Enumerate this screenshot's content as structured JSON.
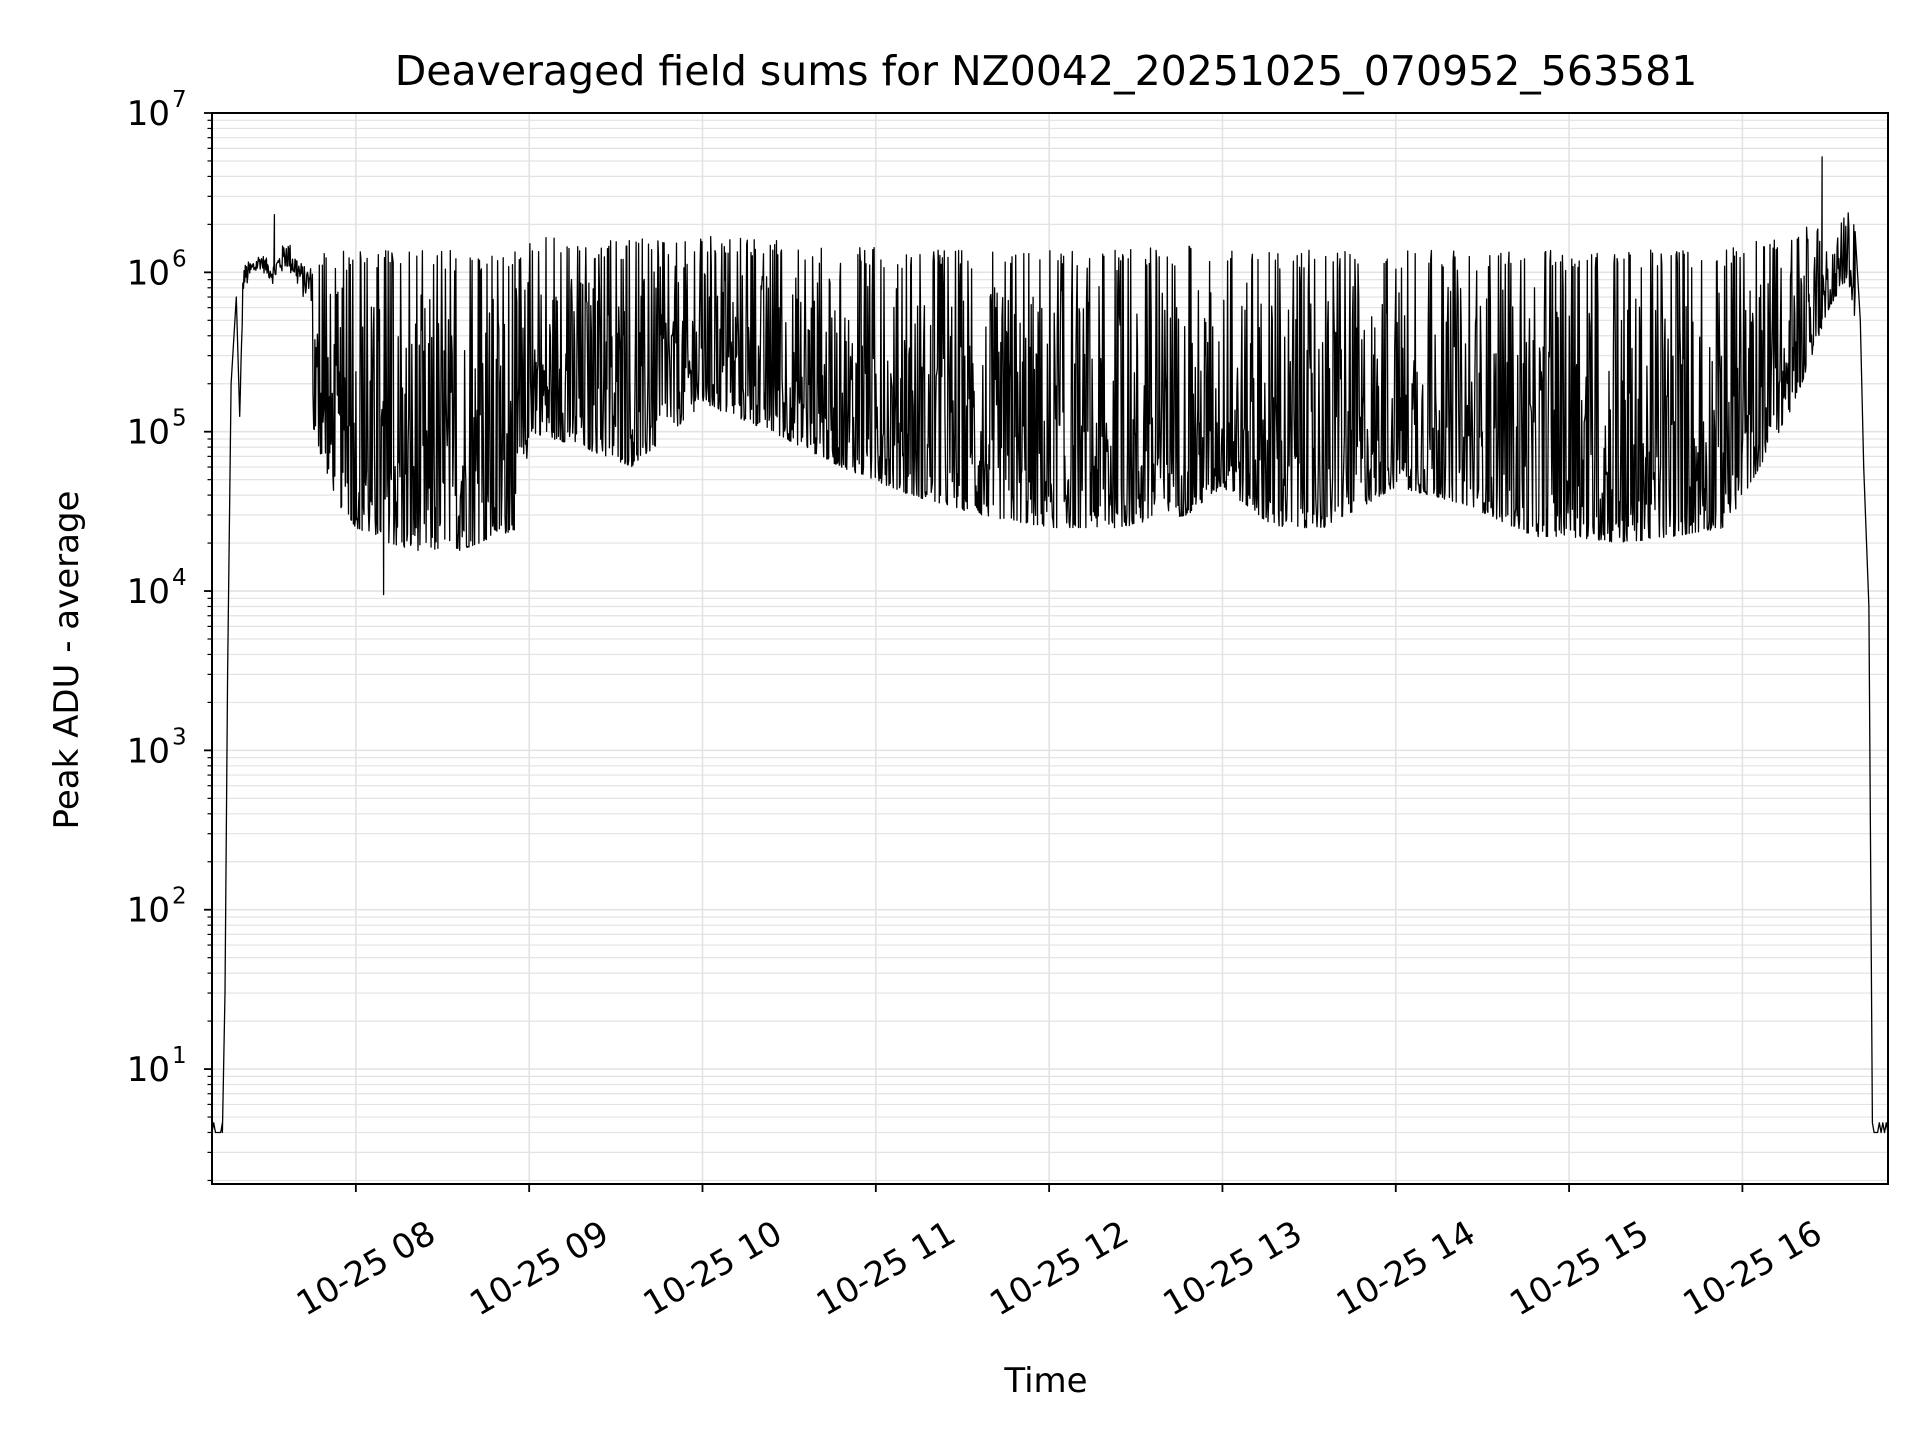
{
  "chart_data": {
    "type": "line",
    "title": "Deaveraged field sums for NZ0042_20251025_070952_563581",
    "xlabel": "Time",
    "ylabel": "Peak ADU - average",
    "yscale": "log",
    "ylim": [
      1.9,
      10000000
    ],
    "xlim_hours": [
      7.17,
      16.84
    ],
    "x_tick_labels": [
      "10-25 08",
      "10-25 09",
      "10-25 10",
      "10-25 11",
      "10-25 12",
      "10-25 13",
      "10-25 14",
      "10-25 15",
      "10-25 16"
    ],
    "x_tick_hours": [
      8,
      9,
      10,
      11,
      12,
      13,
      14,
      15,
      16
    ],
    "y_tick_bases": [
      "10",
      "10",
      "10",
      "10",
      "10",
      "10",
      "10"
    ],
    "y_tick_exponents": [
      "1",
      "2",
      "3",
      "4",
      "5",
      "6",
      "7"
    ],
    "y_tick_values": [
      10,
      100,
      1000,
      10000,
      100000,
      1000000,
      10000000
    ],
    "grid": true,
    "line_color": "#000000",
    "grid_color": "#e3e3e3",
    "series": [
      {
        "name": "Peak ADU - average",
        "baseline_value": 4,
        "envelope": {
          "x_hours": [
            7.23,
            7.35,
            7.45,
            7.52,
            7.6,
            7.7,
            7.8,
            7.9,
            8.0,
            8.1,
            8.3,
            8.6,
            8.95,
            9.0,
            9.3,
            9.6,
            10.0,
            10.4,
            10.8,
            11.2,
            11.6,
            12.0,
            12.4,
            12.8,
            13.0,
            13.3,
            13.6,
            14.0,
            14.4,
            14.8,
            15.0,
            15.3,
            15.6,
            15.9,
            16.1,
            16.3,
            16.5,
            16.6,
            16.65
          ],
          "upper": [
            4,
            1200000,
            1400000,
            1200000,
            1800000,
            1200000,
            1200000,
            1200000,
            1200000,
            1200000,
            1200000,
            1200000,
            1200000,
            1500000,
            1400000,
            1400000,
            1500000,
            1400000,
            1300000,
            1200000,
            1200000,
            1200000,
            1200000,
            1300000,
            1300000,
            1200000,
            1200000,
            1200000,
            1200000,
            1200000,
            1200000,
            1200000,
            1200000,
            1200000,
            1400000,
            1600000,
            2000000,
            2200000,
            1800000
          ],
          "lower": [
            4,
            300000,
            700000,
            500000,
            300000,
            150000,
            70000,
            35000,
            25000,
            22000,
            18000,
            18000,
            25000,
            100000,
            80000,
            60000,
            150000,
            100000,
            60000,
            40000,
            30000,
            25000,
            25000,
            30000,
            45000,
            25000,
            25000,
            45000,
            35000,
            22000,
            22000,
            20000,
            22000,
            25000,
            60000,
            150000,
            600000,
            900000,
            500000
          ]
        },
        "spikes": [
          {
            "x_hours": 7.53,
            "value": 2300000
          },
          {
            "x_hours": 8.16,
            "value": 9500
          },
          {
            "x_hours": 16.46,
            "value": 5300000
          }
        ],
        "tail": {
          "x_hours": [
            16.65,
            16.68,
            16.7,
            16.73,
            16.75,
            16.84
          ],
          "values": [
            1800000,
            500000,
            60000,
            8000,
            4,
            4
          ]
        }
      }
    ]
  }
}
